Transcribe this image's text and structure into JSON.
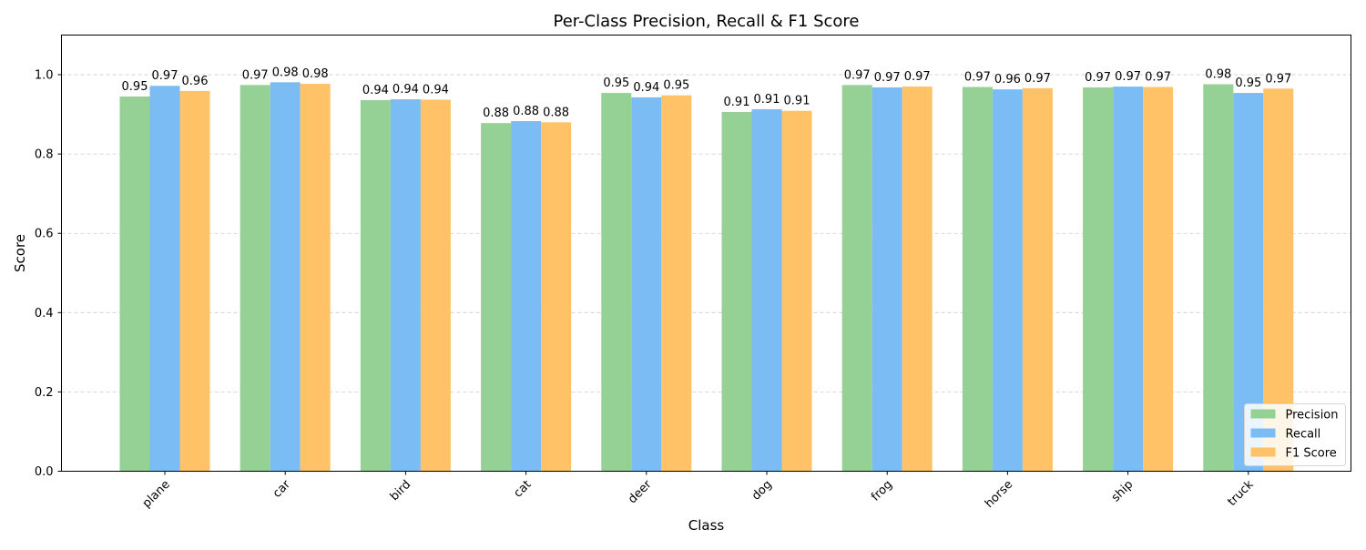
{
  "chart_data": {
    "type": "bar",
    "title": "Per-Class Precision, Recall & F1 Score",
    "xlabel": "Class",
    "ylabel": "Score",
    "ylim": [
      0,
      1.1
    ],
    "yticks": [
      0.0,
      0.2,
      0.4,
      0.6,
      0.8,
      1.0
    ],
    "ytick_labels": [
      "0.0",
      "0.2",
      "0.4",
      "0.6",
      "0.8",
      "1.0"
    ],
    "grid": "y-dashed",
    "legend_position": "lower-right",
    "categories": [
      "plane",
      "car",
      "bird",
      "cat",
      "deer",
      "dog",
      "frog",
      "horse",
      "ship",
      "truck"
    ],
    "series": [
      {
        "name": "Precision",
        "color": "#95d095",
        "values": [
          0.945,
          0.974,
          0.936,
          0.878,
          0.954,
          0.906,
          0.974,
          0.969,
          0.968,
          0.976
        ],
        "labels": [
          "0.95",
          "0.97",
          "0.94",
          "0.88",
          "0.95",
          "0.91",
          "0.97",
          "0.97",
          "0.97",
          "0.98"
        ]
      },
      {
        "name": "Recall",
        "color": "#7bbcf5",
        "values": [
          0.972,
          0.981,
          0.938,
          0.883,
          0.943,
          0.913,
          0.968,
          0.963,
          0.97,
          0.954
        ],
        "labels": [
          "0.97",
          "0.98",
          "0.94",
          "0.88",
          "0.94",
          "0.91",
          "0.97",
          "0.96",
          "0.97",
          "0.95"
        ]
      },
      {
        "name": "F1 Score",
        "color": "#ffc266",
        "values": [
          0.959,
          0.977,
          0.937,
          0.88,
          0.948,
          0.909,
          0.97,
          0.966,
          0.969,
          0.965
        ],
        "labels": [
          "0.96",
          "0.98",
          "0.94",
          "0.88",
          "0.95",
          "0.91",
          "0.97",
          "0.97",
          "0.97",
          "0.97"
        ]
      }
    ]
  }
}
